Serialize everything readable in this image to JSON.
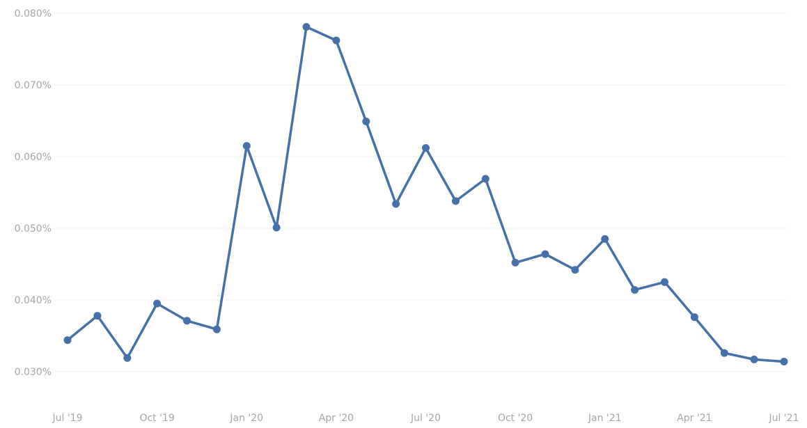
{
  "chart_data": {
    "type": "line",
    "title": "",
    "xlabel": "",
    "ylabel": "",
    "x": [
      "Jul '19",
      "Aug '19",
      "Sep '19",
      "Oct '19",
      "Nov '19",
      "Dec '19",
      "Jan '20",
      "Feb '20",
      "Mar '20",
      "Apr '20",
      "May '20",
      "Jun '20",
      "Jul '20",
      "Aug '20",
      "Sep '20",
      "Oct '20",
      "Nov '20",
      "Dec '20",
      "Jan '21",
      "Feb '21",
      "Mar '21",
      "Apr '21",
      "May '21",
      "Jun '21",
      "Jul '21"
    ],
    "x_tick_labels": [
      "Jul '19",
      "Oct '19",
      "Jan '20",
      "Apr '20",
      "Jul '20",
      "Oct '20",
      "Jan '21",
      "Apr '21",
      "Jul '21"
    ],
    "y_tick_labels": [
      "0.030%",
      "0.040%",
      "0.050%",
      "0.060%",
      "0.070%",
      "0.080%"
    ],
    "y_ticks": [
      0.03,
      0.04,
      0.05,
      0.06,
      0.07,
      0.08
    ],
    "ylim": [
      0.03,
      0.08
    ],
    "y_unit": "%",
    "series": [
      {
        "values": [
          0.0344,
          0.0378,
          0.0319,
          0.0395,
          0.0371,
          0.0359,
          0.0615,
          0.0501,
          0.0781,
          0.0762,
          0.0649,
          0.0534,
          0.0612,
          0.0538,
          0.0569,
          0.0452,
          0.0464,
          0.0442,
          0.0485,
          0.0414,
          0.0425,
          0.0376,
          0.0326,
          0.0317,
          0.0314
        ],
        "color": "#4472a8"
      }
    ],
    "grid": true,
    "legend": "none"
  }
}
